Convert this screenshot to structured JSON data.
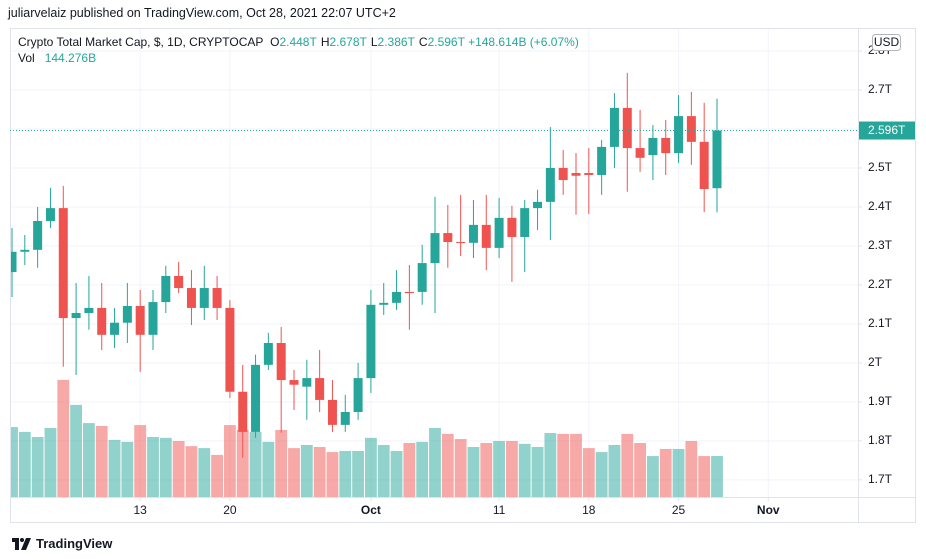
{
  "header": {
    "publisher": "juliarvelaiz published on TradingView.com, Oct 28, 2021 22:07 UTC+2"
  },
  "footer": {
    "brand": "TradingView"
  },
  "chart_data": {
    "type": "candlestick",
    "title": "Crypto Total Market Cap, $, 1D, CRYPTOCAP",
    "ohlc_legend": [
      {
        "key": "O",
        "text": "2.448T"
      },
      {
        "key": "H",
        "text": "2.678T"
      },
      {
        "key": "L",
        "text": "2.386T"
      },
      {
        "key": "C",
        "text": "2.596T"
      }
    ],
    "change": "+148.614B (+6.07%)",
    "volume_legend": {
      "name": "Vol",
      "text": "144.276B"
    },
    "currency": "USD",
    "last_price_label": "2.596T",
    "x": [
      "2021-09-03",
      "2021-09-04",
      "2021-09-05",
      "2021-09-06",
      "2021-09-07",
      "2021-09-08",
      "2021-09-09",
      "2021-09-10",
      "2021-09-11",
      "2021-09-12",
      "2021-09-13",
      "2021-09-14",
      "2021-09-15",
      "2021-09-16",
      "2021-09-17",
      "2021-09-18",
      "2021-09-19",
      "2021-09-20",
      "2021-09-21",
      "2021-09-22",
      "2021-09-23",
      "2021-09-24",
      "2021-09-25",
      "2021-09-26",
      "2021-09-27",
      "2021-09-28",
      "2021-09-29",
      "2021-09-30",
      "2021-10-01",
      "2021-10-02",
      "2021-10-03",
      "2021-10-04",
      "2021-10-05",
      "2021-10-06",
      "2021-10-07",
      "2021-10-08",
      "2021-10-09",
      "2021-10-10",
      "2021-10-11",
      "2021-10-12",
      "2021-10-13",
      "2021-10-14",
      "2021-10-15",
      "2021-10-16",
      "2021-10-17",
      "2021-10-18",
      "2021-10-19",
      "2021-10-20",
      "2021-10-21",
      "2021-10-22",
      "2021-10-23",
      "2021-10-24",
      "2021-10-25",
      "2021-10-26",
      "2021-10-27",
      "2021-10-28"
    ],
    "xlim": [
      "2021-09-03",
      "2021-11-08"
    ],
    "xticks": [
      {
        "value": "2021-09-13",
        "label": "13"
      },
      {
        "value": "2021-09-20",
        "label": "20"
      },
      {
        "value": "2021-10-01",
        "label": "Oct"
      },
      {
        "value": "2021-10-11",
        "label": "11"
      },
      {
        "value": "2021-10-18",
        "label": "18"
      },
      {
        "value": "2021-10-25",
        "label": "25"
      },
      {
        "value": "2021-11-01",
        "label": "Nov"
      }
    ],
    "open": [
      2.233,
      2.285,
      2.29,
      2.364,
      2.397,
      2.115,
      2.128,
      2.141,
      2.072,
      2.103,
      2.146,
      2.072,
      2.156,
      2.223,
      2.192,
      2.141,
      2.192,
      2.141,
      1.926,
      1.823,
      1.995,
      2.051,
      1.956,
      1.939,
      1.961,
      1.905,
      1.841,
      1.874,
      1.961,
      2.149,
      2.154,
      2.182,
      2.182,
      2.256,
      2.333,
      2.31,
      2.308,
      2.354,
      2.295,
      2.372,
      2.323,
      2.397,
      2.413,
      2.5,
      2.487,
      2.487,
      2.482,
      2.554,
      2.654,
      2.551,
      2.533,
      2.577,
      2.538,
      2.633,
      2.567,
      2.448
    ],
    "high": [
      2.346,
      2.328,
      2.4,
      2.449,
      2.454,
      2.205,
      2.223,
      2.205,
      2.141,
      2.205,
      2.187,
      2.187,
      2.249,
      2.259,
      2.238,
      2.249,
      2.223,
      2.161,
      1.995,
      2.021,
      2.077,
      2.092,
      1.982,
      2.008,
      2.033,
      1.956,
      1.918,
      2.0,
      2.187,
      2.205,
      2.238,
      2.251,
      2.303,
      2.426,
      2.405,
      2.431,
      2.418,
      2.431,
      2.423,
      2.403,
      2.418,
      2.444,
      2.605,
      2.546,
      2.538,
      2.551,
      2.572,
      2.692,
      2.744,
      2.649,
      2.61,
      2.623,
      2.687,
      2.695,
      2.667,
      2.678
    ],
    "low": [
      2.169,
      2.251,
      2.244,
      2.346,
      1.99,
      1.969,
      2.085,
      2.033,
      2.038,
      2.051,
      1.977,
      2.033,
      2.128,
      2.179,
      2.097,
      2.11,
      2.11,
      1.91,
      1.757,
      1.808,
      1.982,
      1.821,
      1.879,
      1.854,
      1.874,
      1.823,
      1.823,
      1.854,
      1.923,
      2.123,
      2.136,
      2.085,
      2.149,
      2.128,
      2.244,
      2.274,
      2.269,
      2.238,
      2.269,
      2.208,
      2.233,
      2.341,
      2.315,
      2.431,
      2.38,
      2.382,
      2.431,
      2.5,
      2.439,
      2.49,
      2.469,
      2.482,
      2.513,
      2.508,
      2.387,
      2.386
    ],
    "close": [
      2.285,
      2.29,
      2.364,
      2.397,
      2.115,
      2.128,
      2.141,
      2.072,
      2.103,
      2.146,
      2.072,
      2.156,
      2.223,
      2.192,
      2.141,
      2.192,
      2.141,
      1.926,
      1.823,
      1.995,
      2.051,
      1.956,
      1.944,
      1.961,
      1.905,
      1.841,
      1.874,
      1.961,
      2.149,
      2.154,
      2.182,
      2.179,
      2.256,
      2.333,
      2.31,
      2.308,
      2.354,
      2.295,
      2.372,
      2.323,
      2.397,
      2.413,
      2.5,
      2.469,
      2.48,
      2.482,
      2.554,
      2.654,
      2.551,
      2.526,
      2.577,
      2.538,
      2.633,
      2.567,
      2.446,
      2.596
    ],
    "volume": [
      246,
      229,
      211,
      243,
      412,
      324,
      260,
      250,
      201,
      194,
      253,
      211,
      208,
      197,
      179,
      172,
      148,
      253,
      236,
      229,
      194,
      236,
      172,
      183,
      176,
      158,
      162,
      162,
      208,
      183,
      162,
      190,
      194,
      243,
      222,
      204,
      176,
      190,
      197,
      197,
      187,
      176,
      225,
      222,
      222,
      172,
      158,
      183,
      222,
      190,
      144,
      169,
      169,
      197,
      144,
      144.276
    ],
    "volume_ylim": [
      0,
      1650
    ],
    "ylim": [
      1.656,
      2.859
    ],
    "yticks": [
      {
        "value": 1.7,
        "label": "1.7T"
      },
      {
        "value": 1.8,
        "label": "1.8T"
      },
      {
        "value": 1.9,
        "label": "1.9T"
      },
      {
        "value": 2.0,
        "label": "2T"
      },
      {
        "value": 2.1,
        "label": "2.1T"
      },
      {
        "value": 2.2,
        "label": "2.2T"
      },
      {
        "value": 2.3,
        "label": "2.3T"
      },
      {
        "value": 2.4,
        "label": "2.4T"
      },
      {
        "value": 2.5,
        "label": "2.5T"
      },
      {
        "value": 2.6,
        "label": "2.6T"
      },
      {
        "value": 2.7,
        "label": "2.7T"
      },
      {
        "value": 2.8,
        "label": "2.8T"
      }
    ],
    "up_color": "#26a69a",
    "down_color": "#ef5350",
    "grid": true
  }
}
